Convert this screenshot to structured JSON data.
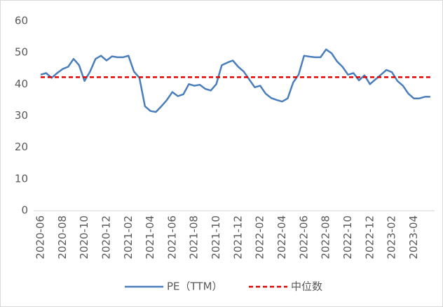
{
  "chart_data": {
    "type": "line",
    "categories": [
      "2020-06",
      null,
      null,
      null,
      "2020-08",
      null,
      null,
      null,
      "2020-10",
      null,
      null,
      null,
      "2020-12",
      null,
      null,
      null,
      "2021-02",
      null,
      null,
      null,
      "2021-04",
      null,
      null,
      null,
      "2021-06",
      null,
      null,
      null,
      "2021-08",
      null,
      null,
      null,
      "2021-10",
      null,
      null,
      null,
      "2021-12",
      null,
      null,
      null,
      "2022-02",
      null,
      null,
      null,
      "2022-04",
      null,
      null,
      null,
      "2022-06",
      null,
      null,
      null,
      "2022-08",
      null,
      null,
      null,
      "2022-10",
      null,
      null,
      null,
      "2022-12",
      null,
      null,
      null,
      "2023-02",
      null,
      null,
      null,
      "2023-04",
      null,
      null,
      null
    ],
    "series": [
      {
        "name": "PE（TTM）",
        "color": "#4a7ebb",
        "dash": false,
        "values": [
          43,
          43.5,
          42,
          43.5,
          44.8,
          45.5,
          48,
          46,
          41,
          44,
          48,
          49,
          47.5,
          48.8,
          48.5,
          48.5,
          49,
          44,
          42,
          33,
          31.5,
          31.2,
          33,
          35,
          37.5,
          36.2,
          36.8,
          40,
          39.5,
          39.8,
          38.5,
          38,
          40,
          46,
          46.8,
          47.5,
          45.5,
          44,
          41.5,
          39,
          39.5,
          37,
          35.6,
          35,
          34.5,
          35.5,
          40.5,
          43,
          49,
          48.7,
          48.5,
          48.5,
          51,
          49.8,
          47.2,
          45.5,
          43,
          43.5,
          41.2,
          42.8,
          40,
          41.5,
          43,
          44.5,
          43.8,
          41,
          39.5,
          37,
          35.5,
          35.5,
          36,
          36
        ]
      },
      {
        "name": "中位数",
        "color": "#e00000",
        "dash": true,
        "values": [
          42.2,
          42.2,
          42.2,
          42.2,
          42.2,
          42.2,
          42.2,
          42.2,
          42.2,
          42.2,
          42.2,
          42.2,
          42.2,
          42.2,
          42.2,
          42.2,
          42.2,
          42.2,
          42.2,
          42.2,
          42.2,
          42.2,
          42.2,
          42.2,
          42.2,
          42.2,
          42.2,
          42.2,
          42.2,
          42.2,
          42.2,
          42.2,
          42.2,
          42.2,
          42.2,
          42.2,
          42.2,
          42.2,
          42.2,
          42.2,
          42.2,
          42.2,
          42.2,
          42.2,
          42.2,
          42.2,
          42.2,
          42.2,
          42.2,
          42.2,
          42.2,
          42.2,
          42.2,
          42.2,
          42.2,
          42.2,
          42.2,
          42.2,
          42.2,
          42.2,
          42.2,
          42.2,
          42.2,
          42.2,
          42.2,
          42.2,
          42.2,
          42.2,
          42.2,
          42.2,
          42.2,
          42.2
        ]
      }
    ],
    "ylim": [
      0,
      60
    ],
    "yticks": [
      0,
      10,
      20,
      30,
      40,
      50,
      60
    ],
    "grid": false,
    "legend": "bottom"
  }
}
